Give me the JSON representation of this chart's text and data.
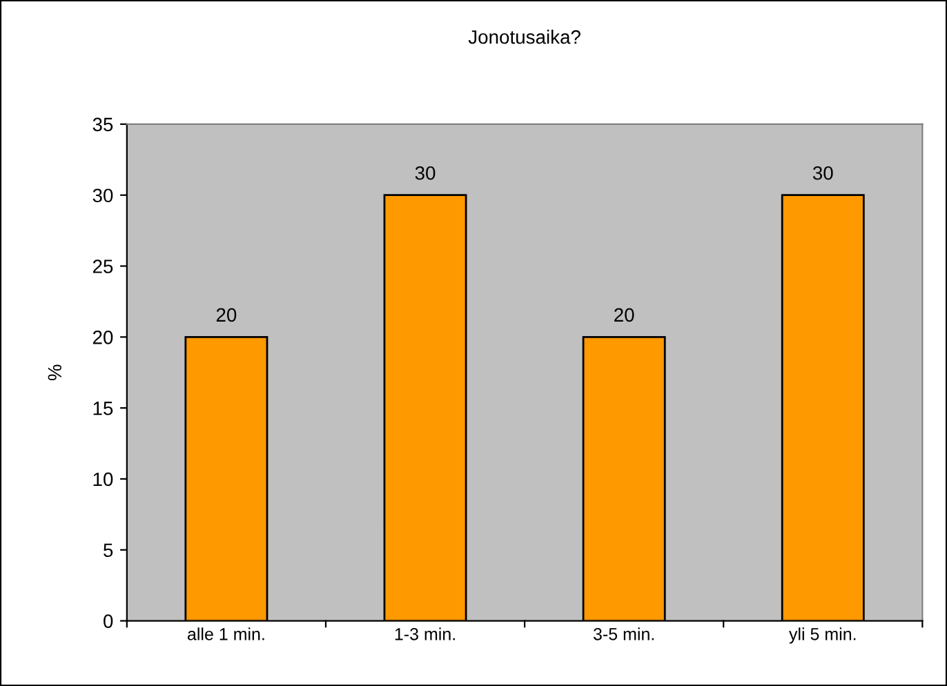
{
  "chart_data": {
    "type": "bar",
    "title": "Jonotusaika?",
    "ylabel": "%",
    "categories": [
      "alle 1 min.",
      "1-3 min.",
      "3-5 min.",
      "yli 5 min."
    ],
    "values": [
      20,
      30,
      20,
      30
    ],
    "color": "#ff9900",
    "ylim": [
      0,
      35
    ],
    "yticks": [
      0,
      5,
      10,
      15,
      20,
      25,
      30,
      35
    ],
    "data_labels": true,
    "grid": false,
    "legend": false
  }
}
